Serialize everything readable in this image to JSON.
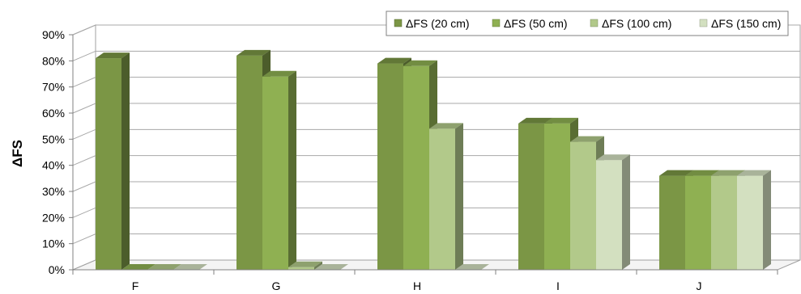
{
  "chart_data": {
    "type": "bar",
    "ylabel": "ΔFS",
    "xlabel": "",
    "ylim": [
      0,
      90
    ],
    "yticks": [
      "0%",
      "10%",
      "20%",
      "30%",
      "40%",
      "50%",
      "60%",
      "70%",
      "80%",
      "90%"
    ],
    "categories": [
      "F",
      "G",
      "H",
      "I",
      "J"
    ],
    "legend_position": "top-right",
    "grid": true,
    "series": [
      {
        "name": "ΔFS (20 cm)",
        "values": [
          81,
          82,
          79,
          56,
          36
        ],
        "color": "#7b9645"
      },
      {
        "name": "ΔFS (50 cm)",
        "values": [
          0,
          74,
          78,
          56,
          36
        ],
        "color": "#8fb052"
      },
      {
        "name": "ΔFS (100 cm)",
        "values": [
          0,
          1,
          54,
          49,
          36
        ],
        "color": "#b2c98a"
      },
      {
        "name": "ΔFS (150 cm)",
        "values": [
          0,
          0,
          0,
          42,
          36
        ],
        "color": "#d3e0c0"
      }
    ]
  }
}
